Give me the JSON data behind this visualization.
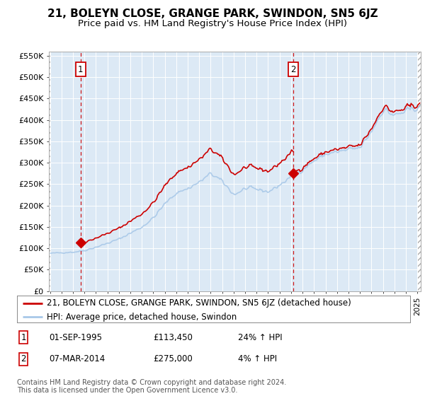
{
  "title": "21, BOLEYN CLOSE, GRANGE PARK, SWINDON, SN5 6JZ",
  "subtitle": "Price paid vs. HM Land Registry's House Price Index (HPI)",
  "ylim": [
    0,
    560000
  ],
  "yticks": [
    0,
    50000,
    100000,
    150000,
    200000,
    250000,
    300000,
    350000,
    400000,
    450000,
    500000,
    550000
  ],
  "ytick_labels": [
    "£0",
    "£50K",
    "£100K",
    "£150K",
    "£200K",
    "£250K",
    "£300K",
    "£350K",
    "£400K",
    "£450K",
    "£500K",
    "£550K"
  ],
  "sale1_date_float": 1995.666,
  "sale1_value": 113450,
  "sale2_date_float": 2014.178,
  "sale2_value": 275000,
  "legend_line1": "21, BOLEYN CLOSE, GRANGE PARK, SWINDON, SN5 6JZ (detached house)",
  "legend_line2": "HPI: Average price, detached house, Swindon",
  "annotation1": [
    "1",
    "01-SEP-1995",
    "£113,450",
    "24% ↑ HPI"
  ],
  "annotation2": [
    "2",
    "07-MAR-2014",
    "£275,000",
    "4% ↑ HPI"
  ],
  "footnote": "Contains HM Land Registry data © Crown copyright and database right 2024.\nThis data is licensed under the Open Government Licence v3.0.",
  "hpi_color": "#a8c8e8",
  "price_color": "#cc0000",
  "vline_color": "#cc0000",
  "plot_bg_color": "#dce9f5",
  "grid_color": "#ffffff",
  "title_fontsize": 11,
  "subtitle_fontsize": 9.5,
  "tick_fontsize": 8,
  "legend_fontsize": 8.5,
  "annotation_fontsize": 8.5,
  "footnote_fontsize": 7
}
